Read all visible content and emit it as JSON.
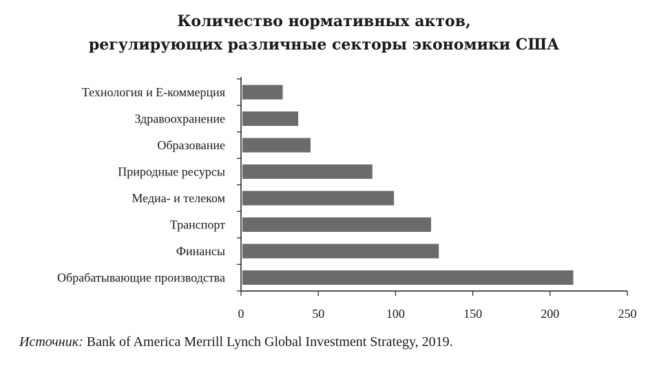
{
  "chart_data": {
    "type": "bar",
    "orientation": "horizontal",
    "title_lines": [
      "Количество нормативных актов,",
      "регулирующих различные секторы экономики США"
    ],
    "categories": [
      "Технология и E-коммерция",
      "Здравоохранение",
      "Образование",
      "Природные ресурсы",
      "Медиа- и телеком",
      "Транспорт",
      "Финансы",
      "Обрабатывающие производства"
    ],
    "values": [
      27,
      37,
      45,
      85,
      99,
      123,
      128,
      215
    ],
    "xlim": [
      0,
      250
    ],
    "xticks": [
      "0",
      "50",
      "100",
      "150",
      "200",
      "250"
    ],
    "grid": false,
    "bar_color": "#6b6b6b"
  },
  "source": {
    "label": "Источник:",
    "text": " Bank of America Merrill Lynch Global Investment Strategy, 2019."
  }
}
